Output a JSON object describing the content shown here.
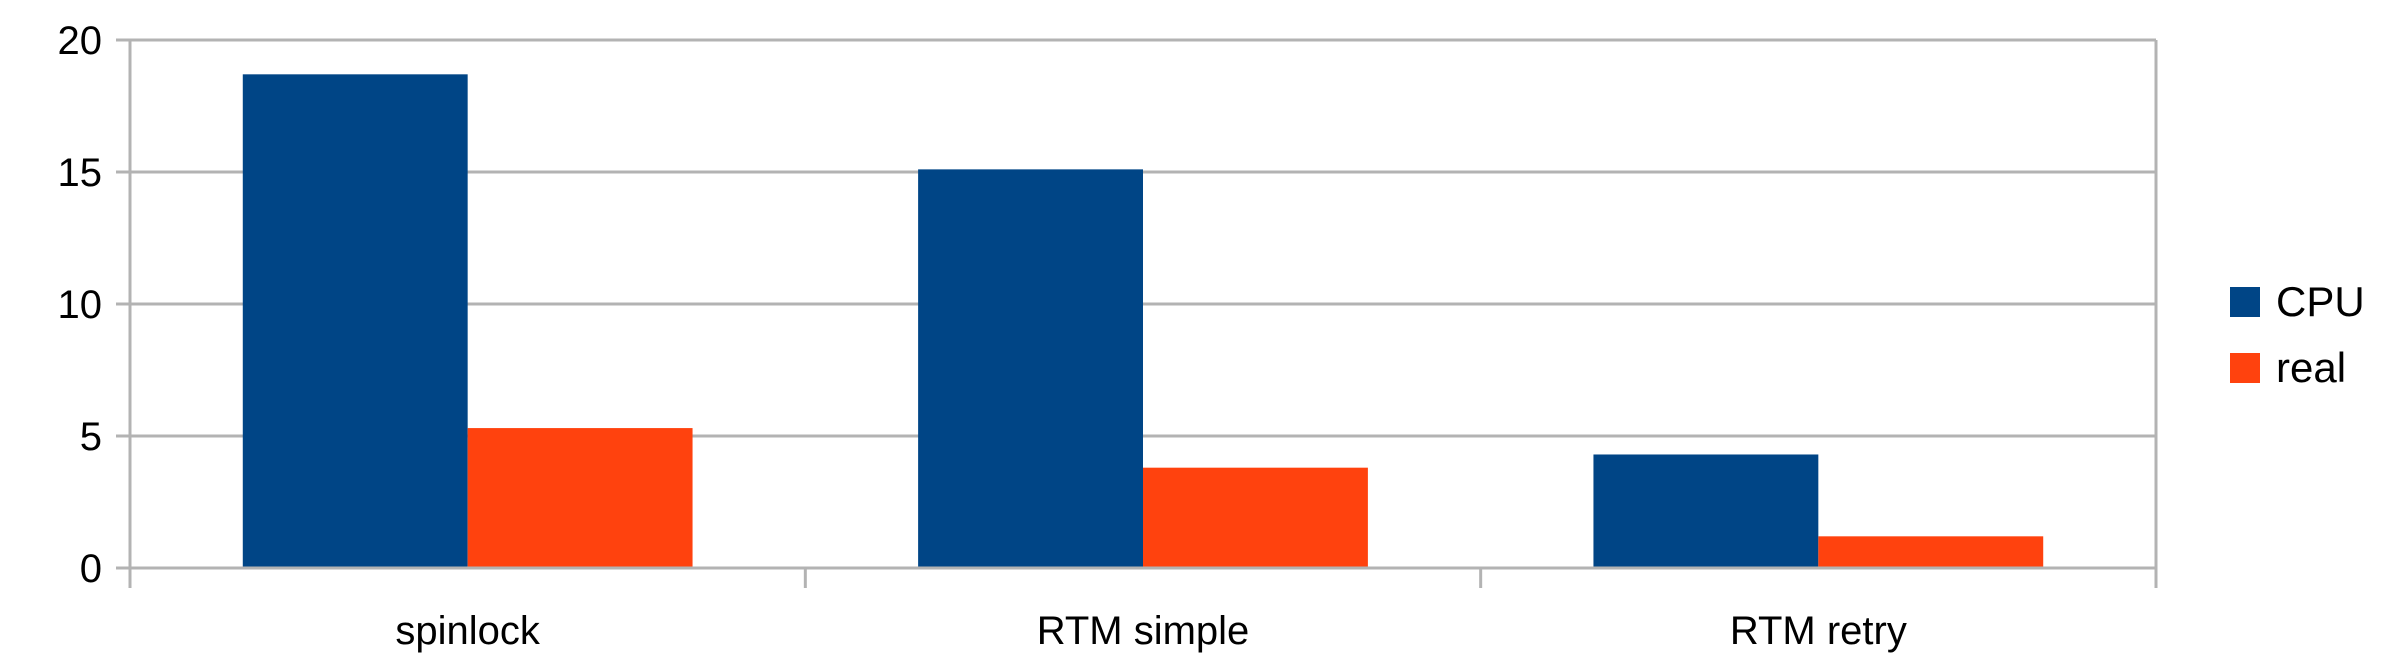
{
  "chart_data": {
    "type": "bar",
    "title": "",
    "xlabel": "",
    "ylabel": "",
    "categories": [
      "spinlock",
      "RTM simple",
      "RTM retry"
    ],
    "series": [
      {
        "name": "CPU",
        "values": [
          18.7,
          15.1,
          4.3
        ],
        "color": "#004586"
      },
      {
        "name": "real",
        "values": [
          5.3,
          3.8,
          1.2
        ],
        "color": "#ff420e"
      }
    ],
    "ylim": [
      0,
      20
    ],
    "yticks": [
      "0",
      "5",
      "10",
      "15",
      "20"
    ],
    "grid": true,
    "legend_position": "right"
  }
}
